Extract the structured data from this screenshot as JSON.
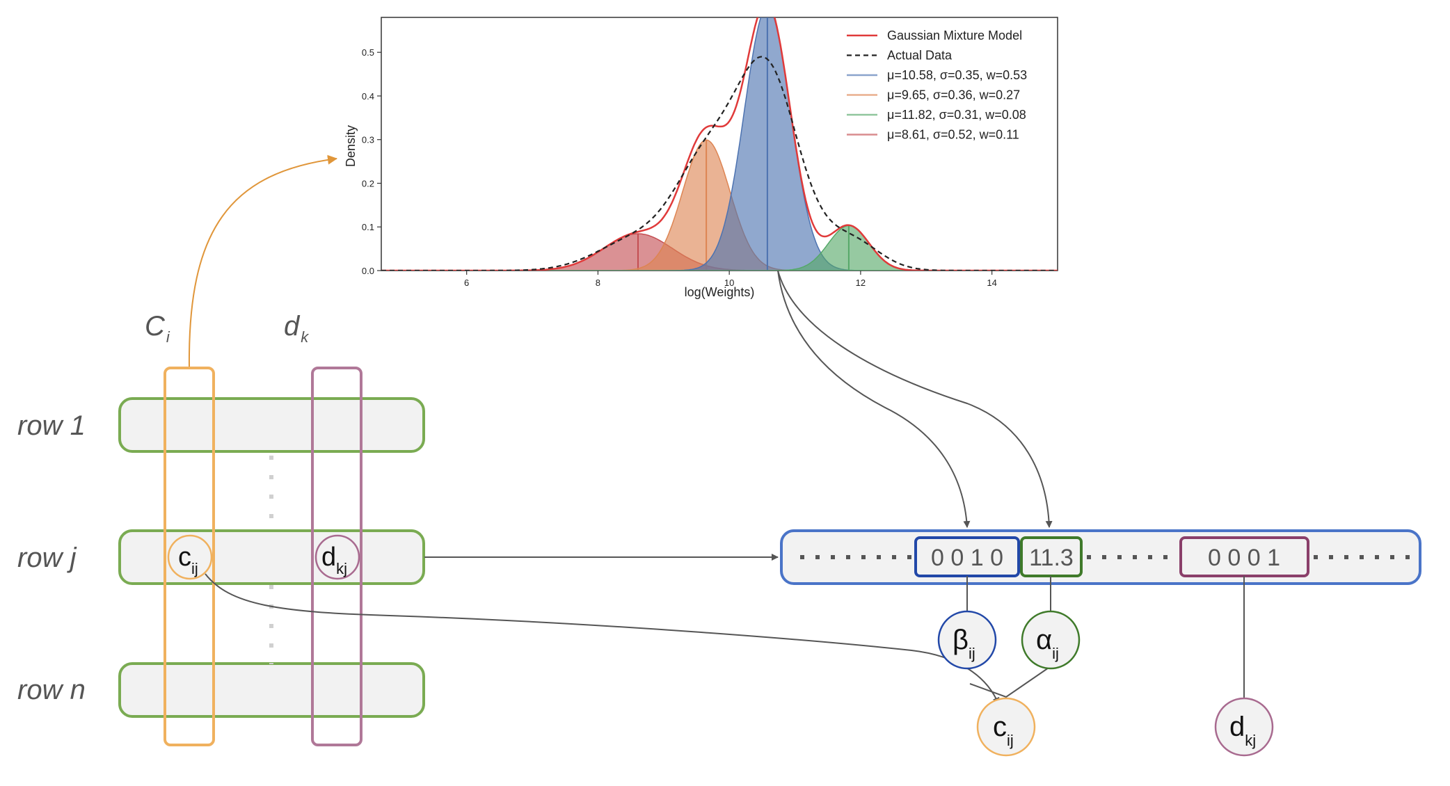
{
  "chart_data": {
    "type": "area",
    "title": "",
    "xlabel": "log(Weights)",
    "ylabel": "Density",
    "xlim": [
      4.7,
      15.0
    ],
    "ylim": [
      0.0,
      0.58
    ],
    "x_ticks": [
      6,
      8,
      10,
      12,
      14
    ],
    "y_ticks": [
      0.0,
      0.1,
      0.2,
      0.3,
      0.4,
      0.5
    ],
    "x_tick_labels": [
      "6",
      "8",
      "10",
      "12",
      "14"
    ],
    "y_tick_labels": [
      "0.0",
      "0.1",
      "0.2",
      "0.3",
      "0.4",
      "0.5"
    ],
    "grid": false,
    "legend_position": "top-right",
    "components": [
      {
        "name": "μ=10.58, σ=0.35, w=0.53",
        "mu": 10.58,
        "sigma": 0.35,
        "w": 0.53,
        "color": "#4c72b0"
      },
      {
        "name": "μ=9.65, σ=0.36, w=0.27",
        "mu": 9.65,
        "sigma": 0.36,
        "w": 0.27,
        "color": "#dd8452"
      },
      {
        "name": "μ=11.82, σ=0.31, w=0.08",
        "mu": 11.82,
        "sigma": 0.31,
        "w": 0.08,
        "color": "#55a868"
      },
      {
        "name": "μ=8.61, σ=0.52, w=0.11",
        "mu": 8.61,
        "sigma": 0.52,
        "w": 0.11,
        "color": "#c44e52"
      }
    ],
    "series": [
      {
        "name": "Gaussian Mixture Model",
        "style": "solid",
        "color": "#e03a3a"
      },
      {
        "name": "Actual Data",
        "style": "dashed",
        "color": "#222222"
      }
    ]
  },
  "diagram": {
    "column_labels": {
      "c_main": "C",
      "c_sub": "i",
      "d_main": "d",
      "d_sub": "k"
    },
    "rows": [
      {
        "label": "row 1",
        "cells": []
      },
      {
        "label": "row j",
        "cells": [
          {
            "main": "c",
            "sub": "ij",
            "color": "#f0b15e"
          },
          {
            "main": "d",
            "sub": "kj",
            "color": "#a86a8f"
          }
        ]
      },
      {
        "label": "row n",
        "cells": []
      }
    ],
    "encoded_vector": {
      "cells": [
        {
          "text": "0 0 1 0",
          "color": "#2248a8"
        },
        {
          "text": "11.3",
          "color": "#3f7a2a"
        },
        {
          "text": "0 0 0 1",
          "color": "#8a3f6a"
        }
      ]
    },
    "nodes": [
      {
        "main": "β",
        "sub": "ij",
        "color": "#2248a8"
      },
      {
        "main": "α",
        "sub": "ij",
        "color": "#3f7a2a"
      },
      {
        "main": "c",
        "sub": "ij",
        "color": "#f0b15e"
      },
      {
        "main": "d",
        "sub": "kj",
        "color": "#a86a8f"
      }
    ],
    "colors": {
      "row_border": "#7aab52",
      "row_fill": "#f2f2f2",
      "vector_border": "#4a74c8",
      "column_c": "#f0b15e",
      "column_d": "#b07898",
      "arrow_orange": "#e0963a",
      "arrow_gray": "#555555"
    }
  }
}
